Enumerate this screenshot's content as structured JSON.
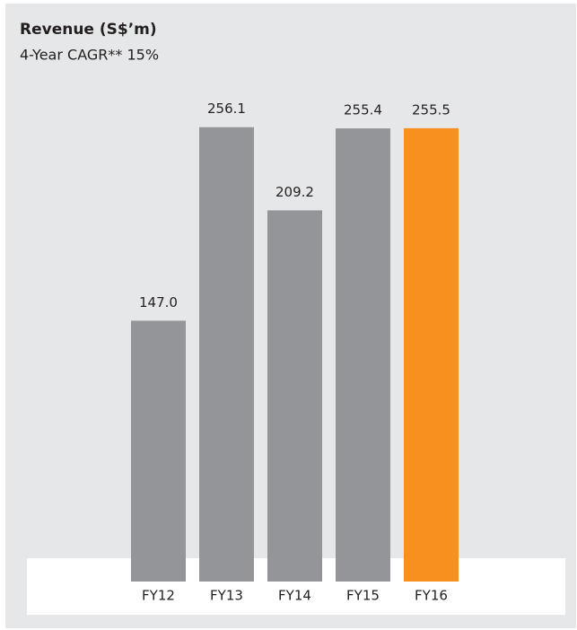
{
  "chart_data": {
    "type": "bar",
    "title": "Revenue (S$’m)",
    "subtitle": "4-Year CAGR** 15%",
    "categories": [
      "FY12",
      "FY13",
      "FY14",
      "FY15",
      "FY16"
    ],
    "values": [
      147.0,
      256.1,
      209.2,
      255.4,
      255.5
    ],
    "value_labels": [
      "147.0",
      "256.1",
      "209.2",
      "255.4",
      "255.5"
    ],
    "colors": [
      "#939598",
      "#939598",
      "#939598",
      "#939598",
      "#f7901e"
    ]
  }
}
